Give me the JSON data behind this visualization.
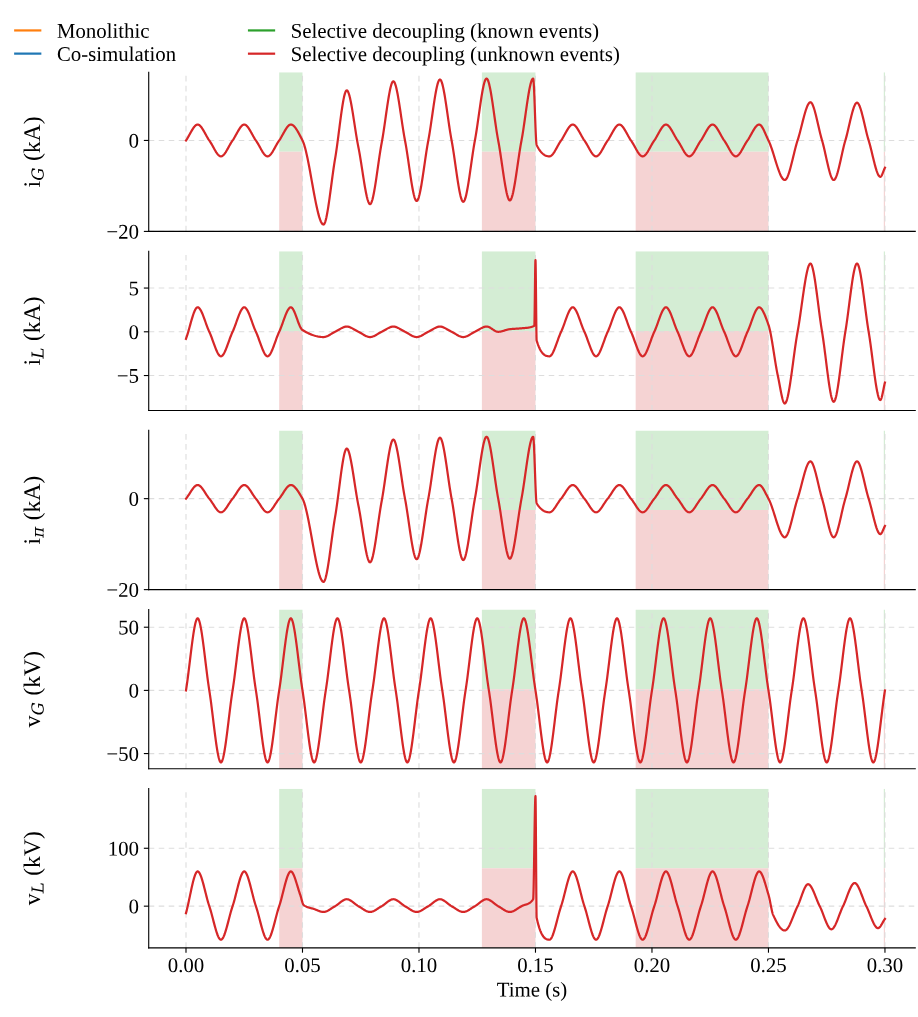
{
  "chart_data": [
    {
      "type": "line",
      "ylabel": "i$_{G}$ (kA)",
      "legend": "top",
      "grid": true,
      "tick_labels": "y",
      "xlim": [
        -0.016,
        0.313
      ],
      "xticks": [
        {
          "value": 0,
          "label": null
        },
        {
          "value": 0.05,
          "label": null
        },
        {
          "value": 0.1,
          "label": null
        },
        {
          "value": 0.15,
          "label": null
        },
        {
          "value": 0.2,
          "label": null
        },
        {
          "value": 0.25,
          "label": null
        },
        {
          "value": 0.3,
          "label": null
        }
      ],
      "ylim": [
        -20,
        15
      ],
      "yticks": [
        {
          "value": -20,
          "label": "−20"
        },
        0
      ],
      "bands": [
        {
          "axis": "x",
          "from": 0.04,
          "to": 0.05,
          "color": "#d4edd4"
        },
        {
          "axis": "x",
          "from": 0.04,
          "to": 0.05,
          "color": "#f5d3d3"
        },
        {
          "axis": "x",
          "from": 0.127,
          "to": 0.15,
          "color": "#d4edd4"
        },
        {
          "axis": "x",
          "from": 0.127,
          "to": 0.15,
          "color": "#f5d3d3"
        },
        {
          "axis": "x",
          "from": 0.193,
          "to": 0.25,
          "color": "#d4edd4"
        },
        {
          "axis": "x",
          "from": 0.193,
          "to": 0.25,
          "color": "#f5d3d3"
        },
        {
          "axis": "x",
          "from": 0.2995,
          "to": 0.3,
          "color": "#d4edd4"
        },
        {
          "axis": "x",
          "from": 0.2995,
          "to": 0.3,
          "color": "#f5d3d3"
        }
      ],
      "series": [
        {
          "name": "Monolithic",
          "color": "#ff7f0e"
        },
        {
          "name": "Co-simulation",
          "color": "#1f77b4"
        },
        {
          "name": "Selective decoupling (known events)",
          "color": "#2ca02c"
        },
        {
          "name": "Selective decoupling (unknown events)",
          "color": "#d62728",
          "x": [
            0,
            0.005,
            0.01,
            0.015,
            0.02,
            0.025,
            0.03,
            0.035,
            0.04,
            0.045,
            0.05,
            0.059,
            0.064,
            0.069,
            0.074,
            0.079,
            0.084,
            0.089,
            0.094,
            0.099,
            0.104,
            0.109,
            0.114,
            0.119,
            0.124,
            0.129,
            0.134,
            0.139,
            0.144,
            0.149,
            0.1505,
            0.156,
            0.161,
            0.166,
            0.171,
            0.176,
            0.181,
            0.186,
            0.191,
            0.196,
            0.201,
            0.206,
            0.211,
            0.216,
            0.221,
            0.226,
            0.231,
            0.236,
            0.241,
            0.246,
            0.25,
            0.257,
            0.2625,
            0.268,
            0.273,
            0.278,
            0.283,
            0.288,
            0.293,
            0.298,
            0.3
          ],
          "values": [
            0,
            3.5,
            0,
            -3.5,
            0,
            3.5,
            0,
            -3.5,
            0,
            3.5,
            0,
            -18.5,
            -4,
            11,
            -1.5,
            -14,
            -0.5,
            13,
            0,
            -13.3,
            0,
            13.4,
            0,
            -13.5,
            0,
            13.6,
            0,
            -13.2,
            0,
            13.6,
            -1,
            -3.5,
            0,
            3.5,
            0,
            -3.5,
            0,
            3.5,
            0,
            -3.5,
            0,
            3.5,
            0,
            -3.5,
            0,
            3.5,
            0,
            -3.5,
            0,
            3.5,
            0,
            -8.7,
            0,
            8.4,
            0,
            -8.7,
            0,
            8.3,
            0,
            -8,
            -6
          ]
        }
      ]
    },
    {
      "type": "line",
      "ylabel": "i$_{L}$ (kA)",
      "grid": true,
      "tick_labels": "y",
      "xlim": [
        -0.016,
        0.313
      ],
      "xticks": [
        {
          "value": 0,
          "label": null
        },
        {
          "value": 0.05,
          "label": null
        },
        {
          "value": 0.1,
          "label": null
        },
        {
          "value": 0.15,
          "label": null
        },
        {
          "value": 0.2,
          "label": null
        },
        {
          "value": 0.25,
          "label": null
        },
        {
          "value": 0.3,
          "label": null
        }
      ],
      "ylim": [
        -9,
        9.2
      ],
      "yticks": [
        {
          "value": -5,
          "label": "−5"
        },
        0,
        5
      ],
      "bands": [
        {
          "axis": "x",
          "from": 0.04,
          "to": 0.05,
          "color": "#d4edd4"
        },
        {
          "axis": "x",
          "from": 0.04,
          "to": 0.05,
          "color": "#f5d3d3"
        },
        {
          "axis": "x",
          "from": 0.127,
          "to": 0.15,
          "color": "#d4edd4"
        },
        {
          "axis": "x",
          "from": 0.127,
          "to": 0.15,
          "color": "#f5d3d3"
        },
        {
          "axis": "x",
          "from": 0.193,
          "to": 0.25,
          "color": "#d4edd4"
        },
        {
          "axis": "x",
          "from": 0.193,
          "to": 0.25,
          "color": "#f5d3d3"
        },
        {
          "axis": "x",
          "from": 0.2995,
          "to": 0.3,
          "color": "#d4edd4"
        },
        {
          "axis": "x",
          "from": 0.2995,
          "to": 0.3,
          "color": "#f5d3d3"
        }
      ],
      "series": [
        {
          "color": "#d62728",
          "x": [
            0,
            0.005,
            0.01,
            0.015,
            0.02,
            0.025,
            0.03,
            0.035,
            0.04,
            0.045,
            0.05,
            0.059,
            0.064,
            0.069,
            0.074,
            0.079,
            0.084,
            0.089,
            0.094,
            0.099,
            0.104,
            0.109,
            0.114,
            0.119,
            0.124,
            0.129,
            0.134,
            0.139,
            0.144,
            0.1495,
            0.15,
            0.1505,
            0.156,
            0.161,
            0.166,
            0.171,
            0.176,
            0.181,
            0.186,
            0.191,
            0.196,
            0.201,
            0.206,
            0.211,
            0.216,
            0.221,
            0.226,
            0.231,
            0.236,
            0.241,
            0.246,
            0.25,
            0.254,
            0.257,
            0.2625,
            0.268,
            0.273,
            0.278,
            0.283,
            0.288,
            0.293,
            0.298,
            0.3
          ],
          "values": [
            -0.8,
            2.8,
            0,
            -2.8,
            0,
            2.8,
            0,
            -2.8,
            0,
            2.8,
            0.2,
            -0.6,
            0,
            0.6,
            0,
            -0.6,
            0,
            0.6,
            0,
            -0.6,
            0,
            0.6,
            0,
            -0.6,
            0,
            0.6,
            0,
            0.3,
            0.4,
            0.7,
            8.2,
            -1,
            -2.8,
            0,
            2.8,
            0,
            -2.8,
            0,
            2.8,
            0,
            -2.8,
            0,
            2.8,
            0,
            -2.8,
            0,
            2.8,
            0,
            -2.8,
            0,
            2.8,
            0.8,
            -5,
            -8.2,
            0,
            7.8,
            0,
            -8,
            0,
            7.8,
            0,
            -7.8,
            -5.8
          ]
        }
      ]
    },
    {
      "type": "line",
      "ylabel": "i$_{π}$ (kA)",
      "grid": true,
      "tick_labels": "y",
      "xlim": [
        -0.016,
        0.313
      ],
      "xticks": [
        {
          "value": 0,
          "label": null
        },
        {
          "value": 0.05,
          "label": null
        },
        {
          "value": 0.1,
          "label": null
        },
        {
          "value": 0.15,
          "label": null
        },
        {
          "value": 0.2,
          "label": null
        },
        {
          "value": 0.25,
          "label": null
        },
        {
          "value": 0.3,
          "label": null
        }
      ],
      "ylim": [
        -20,
        15
      ],
      "yticks": [
        {
          "value": -20,
          "label": "−20"
        },
        0
      ],
      "bands": [
        {
          "axis": "x",
          "from": 0.04,
          "to": 0.05,
          "color": "#d4edd4"
        },
        {
          "axis": "x",
          "from": 0.04,
          "to": 0.05,
          "color": "#f5d3d3"
        },
        {
          "axis": "x",
          "from": 0.127,
          "to": 0.15,
          "color": "#d4edd4"
        },
        {
          "axis": "x",
          "from": 0.127,
          "to": 0.15,
          "color": "#f5d3d3"
        },
        {
          "axis": "x",
          "from": 0.193,
          "to": 0.25,
          "color": "#d4edd4"
        },
        {
          "axis": "x",
          "from": 0.193,
          "to": 0.25,
          "color": "#f5d3d3"
        },
        {
          "axis": "x",
          "from": 0.2995,
          "to": 0.3,
          "color": "#d4edd4"
        },
        {
          "axis": "x",
          "from": 0.2995,
          "to": 0.3,
          "color": "#f5d3d3"
        }
      ],
      "series": [
        {
          "color": "#d62728",
          "x": [
            0,
            0.005,
            0.01,
            0.015,
            0.02,
            0.025,
            0.03,
            0.035,
            0.04,
            0.045,
            0.05,
            0.059,
            0.064,
            0.069,
            0.074,
            0.079,
            0.084,
            0.089,
            0.094,
            0.099,
            0.104,
            0.109,
            0.114,
            0.119,
            0.124,
            0.129,
            0.134,
            0.139,
            0.144,
            0.149,
            0.1505,
            0.156,
            0.161,
            0.166,
            0.171,
            0.176,
            0.181,
            0.186,
            0.191,
            0.196,
            0.201,
            0.206,
            0.211,
            0.216,
            0.221,
            0.226,
            0.231,
            0.236,
            0.241,
            0.246,
            0.25,
            0.257,
            0.2625,
            0.268,
            0.273,
            0.278,
            0.283,
            0.288,
            0.293,
            0.298,
            0.3
          ],
          "values": [
            0,
            3,
            0,
            -3,
            0,
            3,
            0,
            -3,
            0,
            3,
            0,
            -18.3,
            -4,
            11,
            -1.5,
            -14,
            -0.5,
            13,
            0,
            -13.3,
            0,
            13.4,
            0,
            -13.5,
            0,
            13.6,
            0,
            -13.2,
            0,
            13.6,
            -1,
            -3,
            0,
            3,
            0,
            -3,
            0,
            3,
            0,
            -3,
            0,
            3,
            0,
            -3,
            0,
            3,
            0,
            -3,
            0,
            3,
            0,
            -8.5,
            0,
            8.2,
            0,
            -8.5,
            0,
            8.2,
            0,
            -7.8,
            -6
          ]
        }
      ]
    },
    {
      "type": "line",
      "ylabel": "v$_{G}$ (kV)",
      "grid": true,
      "tick_labels": "y",
      "xlim": [
        -0.016,
        0.313
      ],
      "xticks": [
        {
          "value": 0,
          "label": null
        },
        {
          "value": 0.05,
          "label": null
        },
        {
          "value": 0.1,
          "label": null
        },
        {
          "value": 0.15,
          "label": null
        },
        {
          "value": 0.2,
          "label": null
        },
        {
          "value": 0.25,
          "label": null
        },
        {
          "value": 0.3,
          "label": null
        }
      ],
      "ylim": [
        -62,
        64
      ],
      "yticks": [
        {
          "value": -50,
          "label": "−50"
        },
        0,
        50
      ],
      "bands": [
        {
          "axis": "x",
          "from": 0.04,
          "to": 0.05,
          "color": "#d4edd4"
        },
        {
          "axis": "x",
          "from": 0.04,
          "to": 0.05,
          "color": "#f5d3d3"
        },
        {
          "axis": "x",
          "from": 0.127,
          "to": 0.15,
          "color": "#d4edd4"
        },
        {
          "axis": "x",
          "from": 0.127,
          "to": 0.15,
          "color": "#f5d3d3"
        },
        {
          "axis": "x",
          "from": 0.193,
          "to": 0.25,
          "color": "#d4edd4"
        },
        {
          "axis": "x",
          "from": 0.193,
          "to": 0.25,
          "color": "#f5d3d3"
        },
        {
          "axis": "x",
          "from": 0.2995,
          "to": 0.3,
          "color": "#d4edd4"
        },
        {
          "axis": "x",
          "from": 0.2995,
          "to": 0.3,
          "color": "#f5d3d3"
        }
      ],
      "series": [
        {
          "color": "#d62728",
          "x": [
            0,
            0.005,
            0.01,
            0.015,
            0.02,
            0.025,
            0.03,
            0.035,
            0.04,
            0.045,
            0.05,
            0.055,
            0.06,
            0.065,
            0.07,
            0.075,
            0.08,
            0.085,
            0.09,
            0.095,
            0.1,
            0.105,
            0.11,
            0.115,
            0.12,
            0.125,
            0.13,
            0.135,
            0.14,
            0.145,
            0.15,
            0.155,
            0.16,
            0.165,
            0.17,
            0.175,
            0.18,
            0.185,
            0.19,
            0.195,
            0.2,
            0.205,
            0.21,
            0.215,
            0.22,
            0.225,
            0.23,
            0.235,
            0.24,
            0.245,
            0.25,
            0.255,
            0.26,
            0.265,
            0.27,
            0.275,
            0.28,
            0.285,
            0.29,
            0.295,
            0.3
          ],
          "values": [
            0,
            57,
            0,
            -57,
            0,
            57,
            0,
            -57,
            0,
            57,
            0,
            -57,
            0,
            57,
            0,
            -57,
            0,
            57,
            0,
            -57,
            0,
            57,
            0,
            -57,
            0,
            57,
            0,
            -57,
            0,
            57,
            0,
            -57,
            0,
            57,
            0,
            -57,
            0,
            57,
            0,
            -57,
            0,
            57,
            0,
            -57,
            0,
            57,
            0,
            -57,
            0,
            57,
            0,
            -57,
            0,
            57,
            0,
            -57,
            0,
            57,
            0,
            -57,
            0
          ]
        }
      ]
    },
    {
      "type": "line",
      "ylabel": "v$_{L}$ (kV)",
      "xlabel": "Time (s)",
      "grid": true,
      "xlim": [
        -0.016,
        0.313
      ],
      "xticks": [
        {
          "value": 0,
          "label": "0.00"
        },
        {
          "value": 0.05,
          "label": "0.05"
        },
        {
          "value": 0.1,
          "label": "0.10"
        },
        {
          "value": 0.15,
          "label": "0.15"
        },
        {
          "value": 0.2,
          "label": "0.20"
        },
        {
          "value": 0.25,
          "label": "0.25"
        },
        {
          "value": 0.3,
          "label": "0.30"
        }
      ],
      "ylim": [
        -72,
        203
      ],
      "yticks": [
        0,
        100
      ],
      "bands": [
        {
          "axis": "x",
          "from": 0.04,
          "to": 0.05,
          "color": "#d4edd4"
        },
        {
          "axis": "x",
          "from": 0.04,
          "to": 0.05,
          "color": "#f5d3d3"
        },
        {
          "axis": "x",
          "from": 0.127,
          "to": 0.15,
          "color": "#d4edd4"
        },
        {
          "axis": "x",
          "from": 0.127,
          "to": 0.15,
          "color": "#f5d3d3"
        },
        {
          "axis": "x",
          "from": 0.193,
          "to": 0.25,
          "color": "#d4edd4"
        },
        {
          "axis": "x",
          "from": 0.193,
          "to": 0.25,
          "color": "#f5d3d3"
        },
        {
          "axis": "x",
          "from": 0.2995,
          "to": 0.3,
          "color": "#d4edd4"
        },
        {
          "axis": "x",
          "from": 0.2995,
          "to": 0.3,
          "color": "#f5d3d3"
        }
      ],
      "series": [
        {
          "color": "#d62728",
          "x": [
            0,
            0.005,
            0.01,
            0.015,
            0.02,
            0.025,
            0.03,
            0.035,
            0.04,
            0.045,
            0.049,
            0.0505,
            0.055,
            0.059,
            0.064,
            0.069,
            0.074,
            0.079,
            0.084,
            0.089,
            0.094,
            0.099,
            0.104,
            0.109,
            0.114,
            0.119,
            0.124,
            0.129,
            0.134,
            0.139,
            0.144,
            0.149,
            0.15,
            0.1505,
            0.156,
            0.161,
            0.166,
            0.171,
            0.176,
            0.181,
            0.186,
            0.191,
            0.196,
            0.201,
            0.206,
            0.211,
            0.216,
            0.221,
            0.226,
            0.231,
            0.236,
            0.241,
            0.246,
            0.25,
            0.252,
            0.257,
            0.2625,
            0.267,
            0.272,
            0.277,
            0.282,
            0.287,
            0.292,
            0.297,
            0.3
          ],
          "values": [
            -12,
            60,
            0,
            -58,
            0,
            60,
            0,
            -58,
            0,
            60,
            20,
            2,
            -5,
            -10,
            0,
            12,
            0,
            -10,
            0,
            12,
            0,
            -10,
            0,
            12,
            0,
            -10,
            0,
            12,
            0,
            -10,
            0,
            12,
            190,
            -20,
            -58,
            0,
            60,
            0,
            -58,
            0,
            60,
            0,
            -58,
            0,
            60,
            0,
            -58,
            0,
            60,
            0,
            -58,
            0,
            60,
            20,
            -15,
            -42,
            0,
            38,
            0,
            -40,
            0,
            40,
            0,
            -38,
            -22
          ]
        }
      ]
    }
  ]
}
